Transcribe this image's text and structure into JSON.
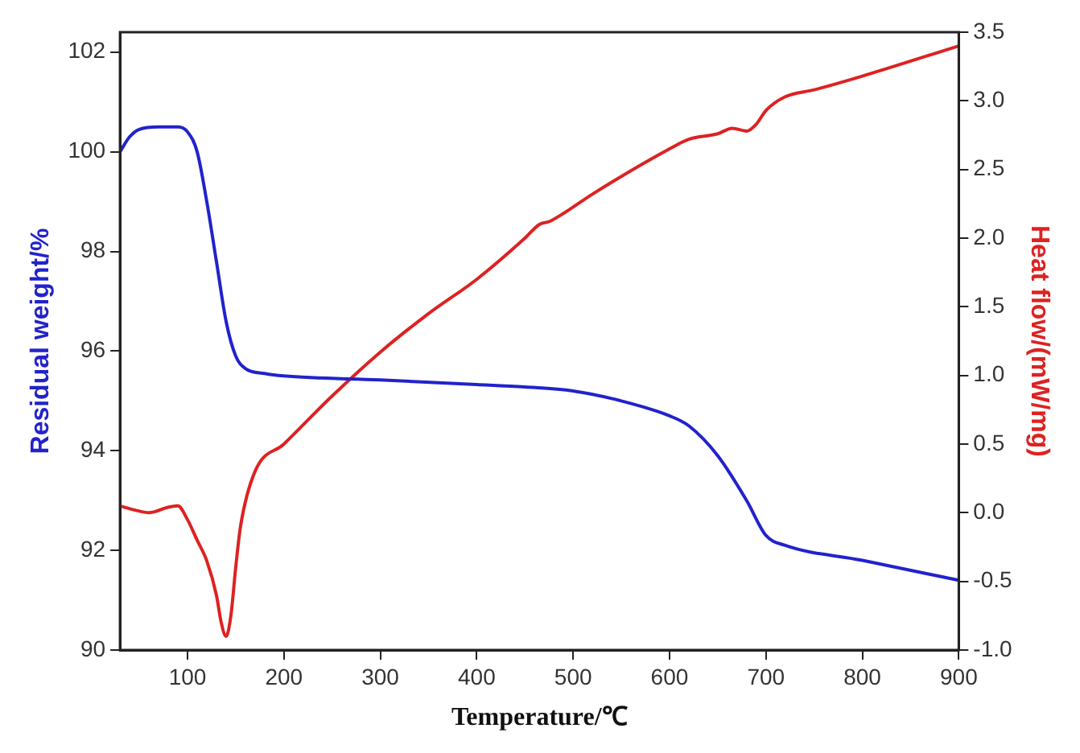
{
  "chart_data": {
    "type": "line",
    "xlabel": "Temperature/℃",
    "ylabel": "Residual weight/%",
    "y2label": "Heat flow/(mW/mg)",
    "xlim": [
      30,
      900
    ],
    "xticks": [
      100,
      200,
      300,
      400,
      500,
      600,
      700,
      800,
      900
    ],
    "ylim": [
      90,
      102.4
    ],
    "yticks": [
      90,
      92,
      94,
      96,
      98,
      100,
      102
    ],
    "y2lim": [
      -1,
      3.5
    ],
    "y2ticks": [
      {
        "value": -1,
        "label": "-1.0"
      },
      {
        "value": -0.5,
        "label": "-0.5"
      },
      {
        "value": 0,
        "label": "0.0"
      },
      {
        "value": 0.5,
        "label": "0.5"
      },
      {
        "value": 1,
        "label": "1.0"
      },
      {
        "value": 1.5,
        "label": "1.5"
      },
      {
        "value": 2,
        "label": "2.0"
      },
      {
        "value": 2.5,
        "label": "2.5"
      },
      {
        "value": 3,
        "label": "3.0"
      },
      {
        "value": 3.5,
        "label": "3.5"
      }
    ],
    "grid": false,
    "legend": false,
    "marker": "none",
    "line_style": "solid",
    "series": [
      {
        "color": "#2222cc",
        "x": [
          30,
          40,
          50,
          70,
          90,
          100,
          110,
          120,
          130,
          140,
          150,
          160,
          180,
          200,
          300,
          400,
          450,
          500,
          550,
          600,
          620,
          650,
          680,
          700,
          720,
          800,
          900
        ],
        "values": [
          100.0,
          100.3,
          100.45,
          100.5,
          100.5,
          100.4,
          100.0,
          99.0,
          97.8,
          96.6,
          95.9,
          95.65,
          95.55,
          95.5,
          95.42,
          95.33,
          95.28,
          95.2,
          95.0,
          94.7,
          94.5,
          93.9,
          93.0,
          92.3,
          92.1,
          91.8,
          91.4
        ]
      },
      {
        "color": "#dd2222",
        "axis": "y2",
        "x": [
          30,
          45,
          60,
          80,
          90,
          100,
          110,
          120,
          130,
          135,
          140,
          145,
          150,
          155,
          170,
          200,
          250,
          300,
          350,
          400,
          450,
          465,
          475,
          490,
          520,
          600,
          620,
          650,
          665,
          680,
          690,
          700,
          720,
          750,
          800,
          900
        ],
        "values": [
          0.05,
          0.02,
          0.0,
          0.04,
          0.05,
          -0.05,
          -0.2,
          -0.35,
          -0.6,
          -0.8,
          -0.9,
          -0.75,
          -0.4,
          -0.1,
          0.3,
          0.5,
          0.85,
          1.17,
          1.45,
          1.7,
          2.0,
          2.1,
          2.12,
          2.18,
          2.32,
          2.65,
          2.72,
          2.76,
          2.8,
          2.78,
          2.83,
          2.93,
          3.03,
          3.08,
          3.18,
          3.4
        ]
      }
    ]
  }
}
